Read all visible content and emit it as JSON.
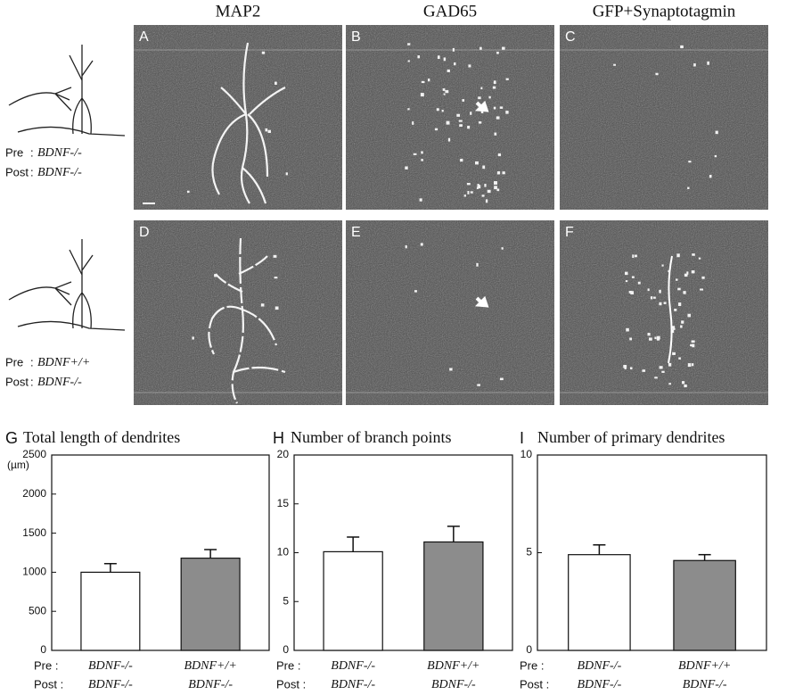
{
  "column_headers": [
    "MAP2",
    "GAD65",
    "GFP+Synaptotagmin"
  ],
  "panel_letters": [
    "A",
    "B",
    "C",
    "D",
    "E",
    "F"
  ],
  "conditions": [
    {
      "pre_label": "Pre",
      "pre": "BDNF-/-",
      "post_label": "Post",
      "post": "BDNF-/-"
    },
    {
      "pre_label": "Pre",
      "pre": "BDNF+/+",
      "post_label": "Post",
      "post": "BDNF-/-"
    }
  ],
  "chart_data": [
    {
      "type": "bar",
      "letter": "G",
      "title": "Total length of dendrites",
      "y_label": "(µm)",
      "row_labels": [
        "Pre :",
        "Post :"
      ],
      "categories": [
        [
          "BDNF-/-",
          "BDNF-/-"
        ],
        [
          "BDNF+/+",
          "BDNF-/-"
        ]
      ],
      "values": [
        1000,
        1180
      ],
      "errors": [
        110,
        110
      ],
      "colors": [
        "#ffffff",
        "#8c8c8c"
      ],
      "ylim": [
        0,
        2500
      ],
      "yticks": [
        0,
        500,
        1000,
        1500,
        2000,
        2500
      ]
    },
    {
      "type": "bar",
      "letter": "H",
      "title": "Number of branch points",
      "row_labels": [
        "Pre :",
        "Post :"
      ],
      "categories": [
        [
          "BDNF-/-",
          "BDNF-/-"
        ],
        [
          "BDNF+/+",
          "BDNF-/-"
        ]
      ],
      "values": [
        10.1,
        11.1
      ],
      "errors": [
        1.5,
        1.6
      ],
      "colors": [
        "#ffffff",
        "#8c8c8c"
      ],
      "ylim": [
        0,
        20
      ],
      "yticks": [
        0,
        5,
        10,
        15,
        20
      ]
    },
    {
      "type": "bar",
      "letter": "I",
      "title": "Number of primary dendrites",
      "row_labels": [
        "Pre :",
        "Post :"
      ],
      "categories": [
        [
          "BDNF-/-",
          "BDNF-/-"
        ],
        [
          "BDNF+/+",
          "BDNF-/-"
        ]
      ],
      "values": [
        4.9,
        4.6
      ],
      "errors": [
        0.5,
        0.3
      ],
      "colors": [
        "#ffffff",
        "#8c8c8c"
      ],
      "ylim": [
        0,
        10
      ],
      "yticks": [
        0,
        5,
        10
      ]
    }
  ]
}
